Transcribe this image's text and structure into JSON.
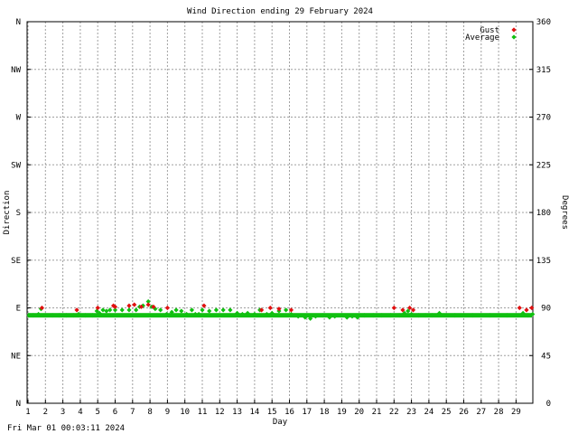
{
  "footer": {
    "generated_at": "Fri Mar 01 00:03:11 2024"
  },
  "chart_data": {
    "type": "scatter",
    "title": "Wind Direction ending 29 February 2024",
    "xlabel": "Day",
    "ylabel_left": "Direction",
    "ylabel_right": "Degrees",
    "xlim": [
      1,
      30
    ],
    "ylim": [
      0,
      360
    ],
    "x_ticks": [
      1,
      2,
      3,
      4,
      5,
      6,
      7,
      8,
      9,
      10,
      11,
      12,
      13,
      14,
      15,
      16,
      17,
      18,
      19,
      20,
      21,
      22,
      23,
      24,
      25,
      26,
      27,
      28,
      29
    ],
    "y_ticks_left": [
      {
        "value": 360,
        "label": "N"
      },
      {
        "value": 315,
        "label": "NW"
      },
      {
        "value": 270,
        "label": "W"
      },
      {
        "value": 225,
        "label": "SW"
      },
      {
        "value": 180,
        "label": "S"
      },
      {
        "value": 135,
        "label": "SE"
      },
      {
        "value": 90,
        "label": "E"
      },
      {
        "value": 45,
        "label": "NE"
      },
      {
        "value": 0,
        "label": "N"
      }
    ],
    "y_ticks_right": [
      360,
      315,
      270,
      225,
      180,
      135,
      90,
      45,
      0
    ],
    "grid": true,
    "legend": {
      "placement": "top-right"
    },
    "series": [
      {
        "name": "Gust",
        "color": "#e01010",
        "points": [
          [
            1.8,
            90
          ],
          [
            3.8,
            88
          ],
          [
            5.0,
            90
          ],
          [
            5.9,
            92
          ],
          [
            6.0,
            91
          ],
          [
            6.8,
            92
          ],
          [
            7.1,
            93
          ],
          [
            7.5,
            91
          ],
          [
            7.9,
            93
          ],
          [
            8.2,
            91
          ],
          [
            9.0,
            90
          ],
          [
            11.1,
            92
          ],
          [
            14.4,
            88
          ],
          [
            14.9,
            90
          ],
          [
            15.4,
            89
          ],
          [
            16.1,
            88
          ],
          [
            22.0,
            90
          ],
          [
            22.5,
            88
          ],
          [
            22.9,
            90
          ],
          [
            23.1,
            88
          ],
          [
            29.2,
            90
          ],
          [
            29.6,
            88
          ],
          [
            29.9,
            90
          ]
        ]
      },
      {
        "name": "Average",
        "color": "#10c010",
        "points": [
          [
            1.05,
            83
          ],
          [
            1.3,
            83
          ],
          [
            1.6,
            84
          ],
          [
            1.75,
            89
          ],
          [
            2.0,
            83
          ],
          [
            2.4,
            83
          ],
          [
            2.8,
            83
          ],
          [
            3.2,
            83
          ],
          [
            3.6,
            83
          ],
          [
            3.9,
            84
          ],
          [
            4.3,
            83
          ],
          [
            4.7,
            83
          ],
          [
            4.95,
            87
          ],
          [
            5.1,
            85
          ],
          [
            5.3,
            88
          ],
          [
            5.5,
            87
          ],
          [
            5.7,
            88
          ],
          [
            6.0,
            88
          ],
          [
            6.4,
            88
          ],
          [
            6.8,
            88
          ],
          [
            7.2,
            88
          ],
          [
            7.4,
            91
          ],
          [
            7.6,
            92
          ],
          [
            7.9,
            96
          ],
          [
            8.1,
            91
          ],
          [
            8.3,
            89
          ],
          [
            8.6,
            88
          ],
          [
            8.95,
            84
          ],
          [
            9.1,
            83
          ],
          [
            9.25,
            86
          ],
          [
            9.5,
            88
          ],
          [
            9.8,
            87
          ],
          [
            10.1,
            84
          ],
          [
            10.4,
            88
          ],
          [
            10.6,
            84
          ],
          [
            10.8,
            84
          ],
          [
            11.0,
            88
          ],
          [
            11.4,
            87
          ],
          [
            11.8,
            88
          ],
          [
            12.2,
            88
          ],
          [
            12.6,
            88
          ],
          [
            13.0,
            85
          ],
          [
            13.3,
            84
          ],
          [
            13.6,
            85
          ],
          [
            14.0,
            84
          ],
          [
            14.3,
            88
          ],
          [
            14.7,
            84
          ],
          [
            15.0,
            85
          ],
          [
            15.4,
            87
          ],
          [
            15.8,
            88
          ],
          [
            16.1,
            84
          ],
          [
            16.5,
            82
          ],
          [
            16.9,
            81
          ],
          [
            17.2,
            80
          ],
          [
            17.5,
            82
          ],
          [
            17.9,
            83
          ],
          [
            18.3,
            81
          ],
          [
            18.6,
            82
          ],
          [
            19.0,
            83
          ],
          [
            19.3,
            81
          ],
          [
            19.6,
            82
          ],
          [
            19.9,
            81
          ],
          [
            20.3,
            83
          ],
          [
            20.8,
            83
          ],
          [
            21.3,
            83
          ],
          [
            21.8,
            83
          ],
          [
            22.3,
            83
          ],
          [
            22.6,
            85
          ],
          [
            22.8,
            87
          ],
          [
            23.0,
            84
          ],
          [
            23.4,
            83
          ],
          [
            23.8,
            83
          ],
          [
            24.2,
            83
          ],
          [
            24.6,
            85
          ],
          [
            25.0,
            83
          ],
          [
            25.5,
            83
          ],
          [
            26.0,
            83
          ],
          [
            26.5,
            83
          ],
          [
            27.0,
            83
          ],
          [
            27.5,
            83
          ],
          [
            28.0,
            83
          ],
          [
            28.5,
            83
          ],
          [
            29.0,
            83
          ],
          [
            29.4,
            85
          ],
          [
            29.7,
            83
          ],
          [
            29.95,
            84
          ]
        ]
      }
    ],
    "average_band": {
      "x_start": 1.0,
      "x_end": 30.0,
      "approx_value": 83
    }
  }
}
